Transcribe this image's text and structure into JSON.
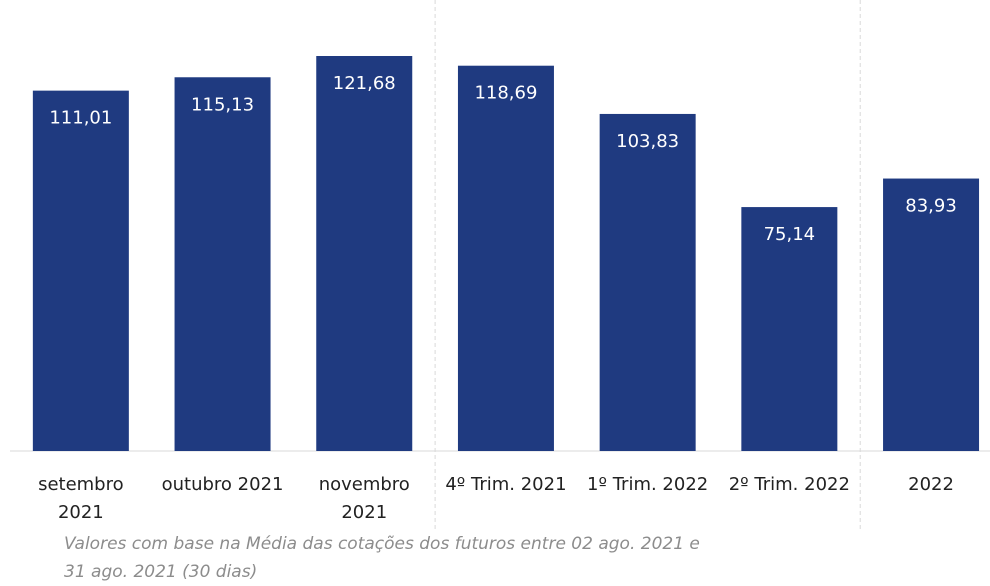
{
  "chart_data": {
    "type": "bar",
    "categories": [
      [
        "setembro",
        "2021"
      ],
      [
        "outubro 2021"
      ],
      [
        "novembro",
        "2021"
      ],
      [
        "4º Trim. 2021"
      ],
      [
        "1º Trim. 2022"
      ],
      [
        "2º Trim. 2022"
      ],
      [
        "2022"
      ]
    ],
    "values": [
      111.01,
      115.13,
      121.68,
      118.69,
      103.83,
      75.14,
      83.93
    ],
    "value_labels": [
      "111,01",
      "115,13",
      "121,68",
      "118,69",
      "103,83",
      "75,14",
      "83,93"
    ],
    "group_separators_after": [
      2,
      5
    ],
    "title": "",
    "xlabel": "",
    "ylabel": "",
    "grid": false,
    "bar_color": "#1f3a80"
  },
  "footnote": "Valores com base na Média das cotações dos futuros entre 02 ago. 2021 e 31 ago. 2021 (30 dias)"
}
